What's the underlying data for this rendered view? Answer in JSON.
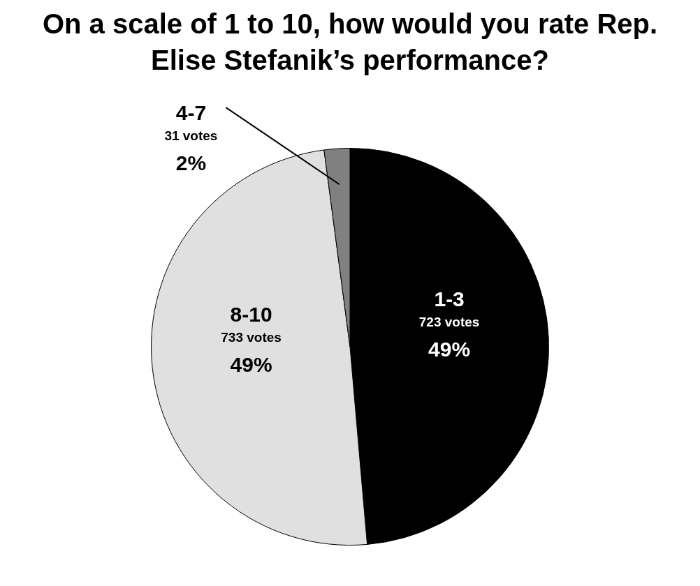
{
  "chart_data": {
    "type": "pie",
    "title": "On a scale of 1 to 10, how would you rate Rep. Elise Stefanik’s performance?",
    "categories": [
      "1-3",
      "8-10",
      "4-7"
    ],
    "values": [
      723,
      733,
      31
    ],
    "colors": [
      "#000000",
      "#e0e0e0",
      "#808080"
    ],
    "value_labels": [
      "723 votes\n49%",
      "733 votes\n49%",
      "31 votes\n2%"
    ],
    "legend": false
  }
}
